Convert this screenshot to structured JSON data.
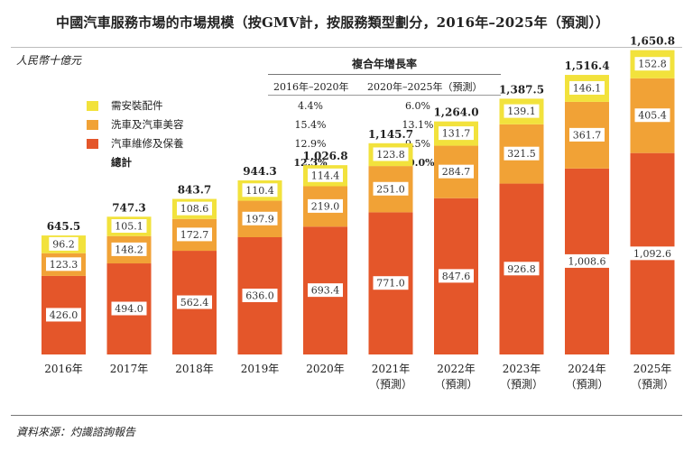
{
  "title": "中國汽車服務市場的市場規模（按GMV計，按服務類型劃分，2016年–2025年（預測））",
  "unit_label": "人民幣十億元",
  "growth_table": {
    "header": "複合年增長率",
    "periods": [
      "2016年–2020年",
      "2020年–2025年（預測）"
    ],
    "rows": [
      {
        "label": "需安裝配件",
        "color": "#f2e23c",
        "rates": [
          "4.4%",
          "6.0%"
        ],
        "bold": false
      },
      {
        "label": "洗車及汽車美容",
        "color": "#f1a236",
        "rates": [
          "15.4%",
          "13.1%"
        ],
        "bold": false
      },
      {
        "label": "汽車維修及保養",
        "color": "#e4562a",
        "rates": [
          "12.9%",
          "9.5%"
        ],
        "bold": false
      },
      {
        "label": "總計",
        "color": "",
        "rates": [
          "12.3%",
          "10.0%"
        ],
        "bold": true
      }
    ]
  },
  "source": "資料來源：灼識諮詢報告",
  "chart_data": {
    "type": "bar",
    "stacked": true,
    "categories": [
      "2016年",
      "2017年",
      "2018年",
      "2019年",
      "2020年",
      "2021年",
      "2022年",
      "2023年",
      "2024年",
      "2025年"
    ],
    "category_sublabels": [
      "",
      "",
      "",
      "",
      "",
      "（預測）",
      "（預測）",
      "（預測）",
      "（預測）",
      "（預測）"
    ],
    "series": [
      {
        "name": "汽車維修及保養",
        "color": "#e4562a",
        "values": [
          426.0,
          494.0,
          562.4,
          636.0,
          693.4,
          771.0,
          847.6,
          926.8,
          1008.6,
          1092.6
        ],
        "labels": [
          "426.0",
          "494.0",
          "562.4",
          "636.0",
          "693.4",
          "771.0",
          "847.6",
          "926.8",
          "1,008.6",
          "1,092.6"
        ]
      },
      {
        "name": "洗車及汽車美容",
        "color": "#f1a236",
        "values": [
          123.3,
          148.2,
          172.7,
          197.9,
          219.0,
          251.0,
          284.7,
          321.5,
          361.7,
          405.4
        ],
        "labels": [
          "123.3",
          "148.2",
          "172.7",
          "197.9",
          "219.0",
          "251.0",
          "284.7",
          "321.5",
          "361.7",
          "405.4"
        ]
      },
      {
        "name": "需安裝配件",
        "color": "#f2e23c",
        "values": [
          96.2,
          105.1,
          108.6,
          110.4,
          114.4,
          123.8,
          131.7,
          139.1,
          146.1,
          152.8
        ],
        "labels": [
          "96.2",
          "105.1",
          "108.6",
          "110.4",
          "114.4",
          "123.8",
          "131.7",
          "139.1",
          "146.1",
          "152.8"
        ]
      }
    ],
    "totals": [
      645.5,
      747.3,
      843.7,
      944.3,
      1026.8,
      1145.7,
      1264.0,
      1387.5,
      1516.4,
      1650.8
    ],
    "total_labels": [
      "645.5",
      "747.3",
      "843.7",
      "944.3",
      "1,026.8",
      "1,145.7",
      "1,264.0",
      "1,387.5",
      "1,516.4",
      "1,650.8"
    ],
    "ylim": [
      0,
      1700
    ],
    "grid": false
  }
}
